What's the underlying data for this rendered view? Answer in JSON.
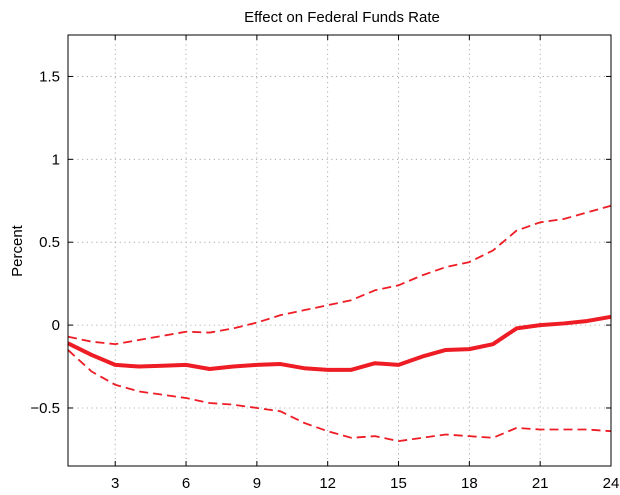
{
  "chart_data": {
    "type": "line",
    "title": "Effect on Federal Funds Rate",
    "xlabel": "",
    "ylabel": "Percent",
    "xlim": [
      1,
      24
    ],
    "ylim": [
      -0.85,
      1.75
    ],
    "xticks": [
      3,
      6,
      9,
      12,
      15,
      18,
      21,
      24
    ],
    "yticks": [
      -0.5,
      0,
      0.5,
      1,
      1.5
    ],
    "xtick_labels": [
      "3",
      "6",
      "9",
      "12",
      "15",
      "18",
      "21",
      "24"
    ],
    "ytick_labels": [
      "−0.5",
      "0",
      "0.5",
      "1",
      "1.5"
    ],
    "grid": true,
    "x": [
      1,
      2,
      3,
      4,
      5,
      6,
      7,
      8,
      9,
      10,
      11,
      12,
      13,
      14,
      15,
      16,
      17,
      18,
      19,
      20,
      21,
      22,
      23,
      24
    ],
    "series": [
      {
        "role": "estimate",
        "color": "#ee1c24",
        "style": "solid",
        "values": [
          -0.11,
          -0.18,
          -0.24,
          -0.25,
          -0.245,
          -0.24,
          -0.265,
          -0.25,
          -0.24,
          -0.235,
          -0.26,
          -0.27,
          -0.27,
          -0.23,
          -0.24,
          -0.19,
          -0.15,
          -0.145,
          -0.115,
          -0.02,
          0.0,
          0.01,
          0.025,
          0.05
        ]
      },
      {
        "role": "upper-bound",
        "color": "#ee1c24",
        "style": "dashed",
        "values": [
          -0.07,
          -0.1,
          -0.115,
          -0.09,
          -0.065,
          -0.04,
          -0.045,
          -0.02,
          0.015,
          0.06,
          0.09,
          0.12,
          0.15,
          0.21,
          0.24,
          0.3,
          0.35,
          0.38,
          0.45,
          0.57,
          0.62,
          0.64,
          0.68,
          0.72
        ]
      },
      {
        "role": "lower-bound",
        "color": "#ee1c24",
        "style": "dashed",
        "values": [
          -0.15,
          -0.28,
          -0.36,
          -0.4,
          -0.42,
          -0.44,
          -0.47,
          -0.48,
          -0.5,
          -0.52,
          -0.59,
          -0.64,
          -0.68,
          -0.67,
          -0.7,
          -0.68,
          -0.66,
          -0.67,
          -0.68,
          -0.62,
          -0.63,
          -0.63,
          -0.63,
          -0.64
        ]
      }
    ]
  }
}
